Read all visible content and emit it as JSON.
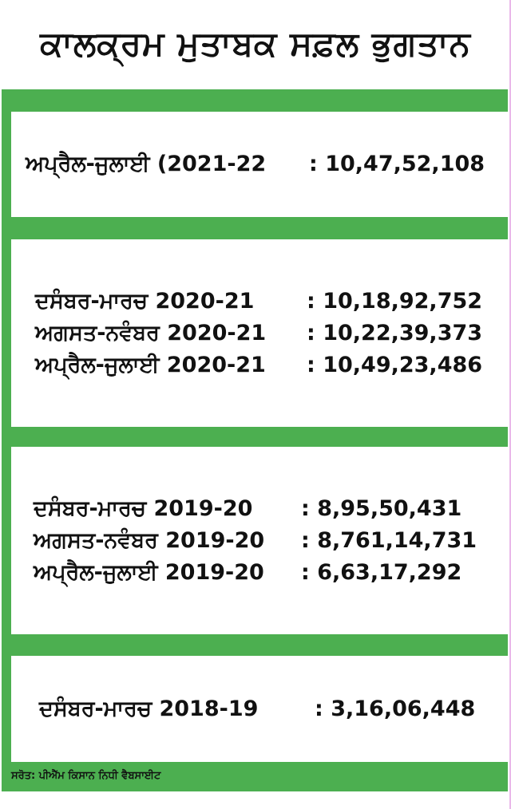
{
  "title": "ਕਾਲਕ੍ਰਮ ਮੁਤਾਬਕ ਸਫ਼ਲ ਭੁਗਤਾਨ",
  "colors": {
    "frame": "#4caf50",
    "box": "#ffffff",
    "text": "#111111"
  },
  "groups": [
    {
      "rows": [
        {
          "label": "ਅਪ੍ਰੈਲ-ਜੁਲਾਈ (2021-22",
          "value": ": 10,47,52,108"
        }
      ]
    },
    {
      "rows": [
        {
          "label": "ਦਸੰਬਰ-ਮਾਰਚ 2020-21",
          "value": ": 10,18,92,752"
        },
        {
          "label": "ਅਗਸਤ-ਨਵੰਬਰ 2020-21",
          "value": ": 10,22,39,373"
        },
        {
          "label": "ਅਪ੍ਰੈਲ-ਜੁਲਾਈ 2020-21",
          "value": ": 10,49,23,486"
        }
      ]
    },
    {
      "rows": [
        {
          "label": "ਦਸੰਬਰ-ਮਾਰਚ 2019-20",
          "value": ": 8,95,50,431"
        },
        {
          "label": "ਅਗਸਤ-ਨਵੰਬਰ 2019-20",
          "value": ": 8,761,14,731"
        },
        {
          "label": "ਅਪ੍ਰੈਲ-ਜੁਲਾਈ 2019-20",
          "value": ": 6,63,17,292"
        }
      ]
    },
    {
      "rows": [
        {
          "label": "ਦਸੰਬਰ-ਮਾਰਚ 2018-19",
          "value": ": 3,16,06,448"
        }
      ]
    }
  ],
  "source": "ਸਰੋਤ: ਪੀਐੱਮ ਕਿਸਾਨ ਨਿਧੀ ਵੈਬਸਾਈਟ"
}
